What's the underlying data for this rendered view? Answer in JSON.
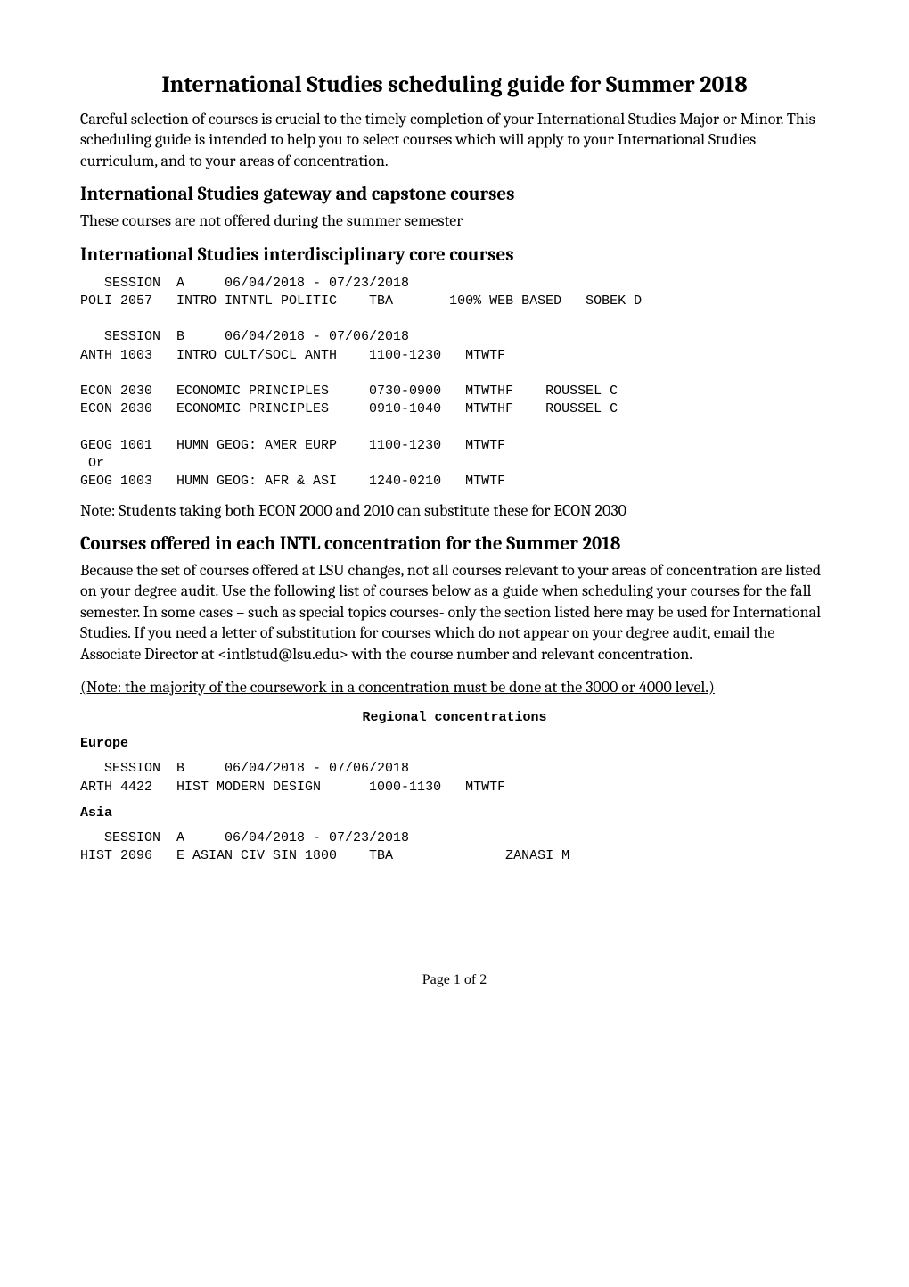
{
  "title": "International Studies scheduling guide for Summer 2018",
  "intro": "Careful selection of courses is crucial to the timely completion of your International Studies Major or Minor.  This scheduling guide is intended to help you to select courses which will apply to your International Studies curriculum, and to your areas of concentration.",
  "gateway_heading": "International Studies gateway and capstone courses",
  "gateway_note": "These courses are not offered during the summer semester",
  "core_heading": "International Studies interdisciplinary core courses",
  "core_block": "   SESSION  A     06/04/2018 - 07/23/2018\nPOLI 2057   INTRO INTNTL POLITIC    TBA       100% WEB BASED   SOBEK D\n\n   SESSION  B     06/04/2018 - 07/06/2018\nANTH 1003   INTRO CULT/SOCL ANTH    1100-1230   MTWTF\n\nECON 2030   ECONOMIC PRINCIPLES     0730-0900   MTWTHF    ROUSSEL C\nECON 2030   ECONOMIC PRINCIPLES     0910-1040   MTWTHF    ROUSSEL C\n\nGEOG 1001   HUMN GEOG: AMER EURP    1100-1230   MTWTF\n Or\nGEOG 1003   HUMN GEOG: AFR & ASI    1240-0210   MTWTF",
  "econ_note": "Note: Students taking both ECON 2000 and 2010 can substitute these for ECON 2030",
  "conc_heading": "Courses offered in each INTL concentration for the Summer 2018",
  "conc_body": "Because the set of courses offered at LSU changes, not all courses relevant to your areas of concentration are listed on your degree audit.  Use the following list of courses below as a guide when scheduling your courses for the fall semester.  In some cases – such as special topics courses- only the section listed here may be used for International Studies.  If you need a letter of substitution for courses which do not appear on your degree audit, email the Associate Director at <intlstud@lsu.edu> with the course number and relevant concentration.",
  "conc_note": "(Note: the majority of the coursework in a concentration must be done at the 3000 or 4000 level.)",
  "regional_heading": "Regional concentrations",
  "europe_label": "Europe",
  "europe_block": "   SESSION  B     06/04/2018 - 07/06/2018\nARTH 4422   HIST MODERN DESIGN      1000-1130   MTWTF",
  "asia_label": "Asia",
  "asia_block": "   SESSION  A     06/04/2018 - 07/23/2018\nHIST 2096   E ASIAN CIV SIN 1800    TBA              ZANASI M",
  "footer": "Page 1 of 2"
}
